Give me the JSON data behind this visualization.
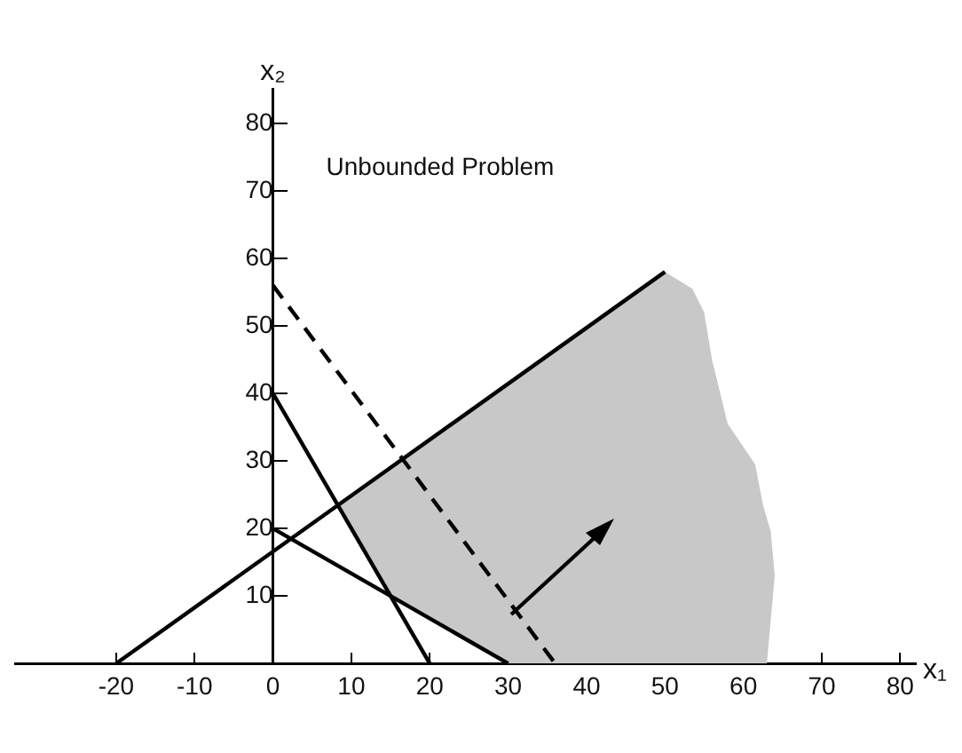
{
  "chart_data": {
    "type": "line",
    "xlabel": "x₁",
    "ylabel": "x₂",
    "annotations": [
      "Unbounded Problem"
    ],
    "xlim": [
      -33,
      82
    ],
    "ylim": [
      0,
      85
    ],
    "xticks": [
      -20,
      -10,
      0,
      10,
      20,
      30,
      40,
      50,
      60,
      70,
      80
    ],
    "yticks": [
      10,
      20,
      30,
      40,
      50,
      60,
      70,
      80
    ],
    "grid": false,
    "legend": false,
    "marker": "none",
    "series": [
      {
        "type": "area",
        "color": "#c8c8c8",
        "x": [
          8.3,
          15,
          30,
          63,
          64,
          63.5,
          62.5,
          61.5,
          58,
          56,
          55,
          53.5,
          50,
          8.3
        ],
        "values": [
          23.5,
          10,
          0,
          0,
          13,
          19.5,
          23.5,
          29.5,
          35.5,
          45,
          52,
          55.5,
          58,
          23.5
        ]
      },
      {
        "type": "line",
        "color": "#000000",
        "line_style": "solid",
        "x": [
          -20,
          50
        ],
        "values": [
          0,
          58
        ]
      },
      {
        "type": "line",
        "color": "#000000",
        "line_style": "solid",
        "x": [
          0,
          20
        ],
        "values": [
          40,
          0
        ]
      },
      {
        "type": "line",
        "color": "#000000",
        "line_style": "solid",
        "x": [
          0,
          30
        ],
        "values": [
          20,
          0
        ]
      },
      {
        "type": "line",
        "color": "#000000",
        "line_style": "dashed",
        "x": [
          0,
          36
        ],
        "values": [
          56,
          0
        ]
      }
    ]
  }
}
